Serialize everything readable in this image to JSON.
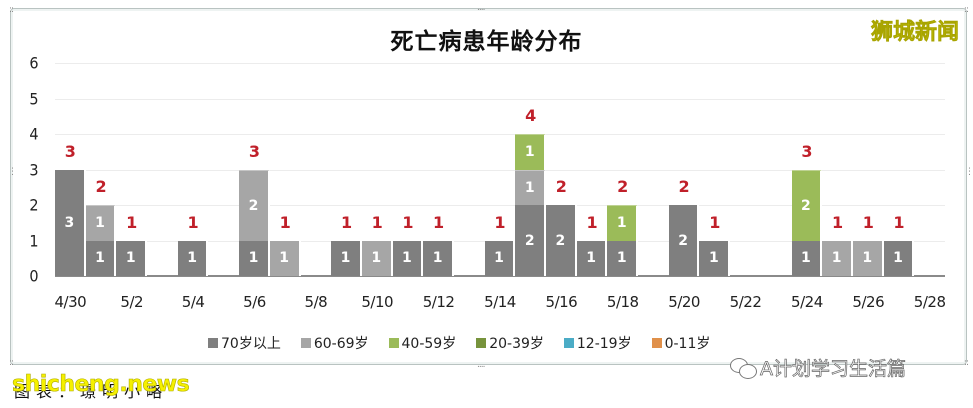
{
  "chart_data": {
    "type": "bar",
    "stacked": true,
    "title": "死亡病患年龄分布",
    "xlabel": "",
    "ylabel": "",
    "ylim": [
      0,
      6
    ],
    "yticks": [
      0,
      1,
      2,
      3,
      4,
      5,
      6
    ],
    "grid": true,
    "legend_position": "bottom",
    "x_tick_labels": [
      "4/30",
      "5/2",
      "5/4",
      "5/6",
      "5/8",
      "5/10",
      "5/12",
      "5/14",
      "5/16",
      "5/18",
      "5/20",
      "5/22",
      "5/24",
      "5/26",
      "5/28"
    ],
    "categories": [
      "4/30",
      "5/1",
      "5/2",
      "5/3",
      "5/4",
      "5/5",
      "5/6",
      "5/7",
      "5/8",
      "5/9",
      "5/10",
      "5/11",
      "5/12",
      "5/13",
      "5/14",
      "5/15",
      "5/16",
      "5/17",
      "5/18",
      "5/19",
      "5/20",
      "5/21",
      "5/22",
      "5/23",
      "5/24",
      "5/25",
      "5/26",
      "5/27",
      "5/28"
    ],
    "series": [
      {
        "name": "70岁以上",
        "color": "#7f7f7f",
        "values": [
          3,
          1,
          1,
          0,
          1,
          0,
          1,
          0,
          0,
          1,
          0,
          1,
          1,
          0,
          1,
          2,
          2,
          1,
          1,
          0,
          2,
          1,
          0,
          0,
          1,
          0,
          0,
          1,
          0
        ]
      },
      {
        "name": "60-69岁",
        "color": "#a6a6a6",
        "values": [
          0,
          1,
          0,
          0,
          0,
          0,
          2,
          1,
          0,
          0,
          1,
          0,
          0,
          0,
          0,
          1,
          0,
          0,
          0,
          0,
          0,
          0,
          0,
          0,
          0,
          1,
          1,
          0,
          0
        ]
      },
      {
        "name": "40-59岁",
        "color": "#9bbb59",
        "values": [
          0,
          0,
          0,
          0,
          0,
          0,
          0,
          0,
          0,
          0,
          0,
          0,
          0,
          0,
          0,
          1,
          0,
          0,
          1,
          0,
          0,
          0,
          0,
          0,
          2,
          0,
          0,
          0,
          0
        ]
      },
      {
        "name": "20-39岁",
        "color": "#77933c",
        "values": [
          0,
          0,
          0,
          0,
          0,
          0,
          0,
          0,
          0,
          0,
          0,
          0,
          0,
          0,
          0,
          0,
          0,
          0,
          0,
          0,
          0,
          0,
          0,
          0,
          0,
          0,
          0,
          0,
          0
        ]
      },
      {
        "name": "12-19岁",
        "color": "#4bacc6",
        "values": [
          0,
          0,
          0,
          0,
          0,
          0,
          0,
          0,
          0,
          0,
          0,
          0,
          0,
          0,
          0,
          0,
          0,
          0,
          0,
          0,
          0,
          0,
          0,
          0,
          0,
          0,
          0,
          0,
          0
        ]
      },
      {
        "name": "0-11岁",
        "color": "#e0904a",
        "values": [
          0,
          0,
          0,
          0,
          0,
          0,
          0,
          0,
          0,
          0,
          0,
          0,
          0,
          0,
          0,
          0,
          0,
          0,
          0,
          0,
          0,
          0,
          0,
          0,
          0,
          0,
          0,
          0,
          0
        ]
      }
    ],
    "totals": [
      3,
      2,
      1,
      0,
      1,
      0,
      3,
      1,
      0,
      1,
      1,
      1,
      1,
      0,
      1,
      4,
      2,
      1,
      2,
      0,
      2,
      1,
      0,
      0,
      3,
      1,
      1,
      1,
      0
    ],
    "total_label_color": "#c0202a"
  },
  "watermarks": {
    "top_right": "狮城新闻",
    "bottom_left": "shicheng.news",
    "wechat_account": "A计划学习生活篇"
  },
  "caption": "图表：璟明小略"
}
